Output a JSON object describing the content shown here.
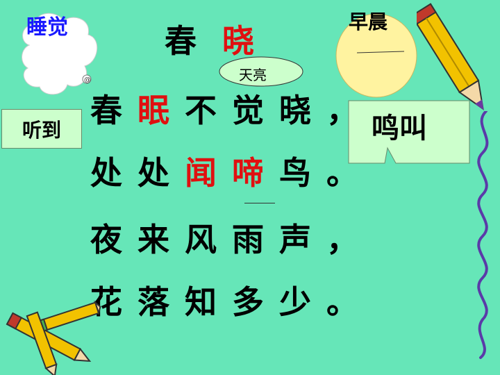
{
  "title": {
    "char1": "春",
    "char2": "晓"
  },
  "labels": {
    "sleep": "睡觉",
    "dawn_note": "天亮",
    "morning": "早晨",
    "hear": "听到",
    "sing": "鸣叫"
  },
  "poem": [
    [
      "春",
      "眠",
      "不",
      "觉",
      "晓",
      "，"
    ],
    [
      "处",
      "处",
      "闻",
      "啼",
      "鸟",
      "。"
    ],
    [
      "夜",
      "来",
      "风",
      "雨",
      "声",
      "，"
    ],
    [
      "花",
      "落",
      "知",
      "多",
      "少",
      "。"
    ]
  ],
  "colors": {
    "background": "#66e6b8",
    "highlight": "#e01010",
    "sleep_label": "#1a1aff",
    "sun": "#fff3a0",
    "label_box": "#ccffcc"
  },
  "icons": [
    "sleeping-cloud-icon",
    "sun-icon",
    "pencil-icon",
    "pencil-pile-icon",
    "squiggle-line-icon"
  ]
}
